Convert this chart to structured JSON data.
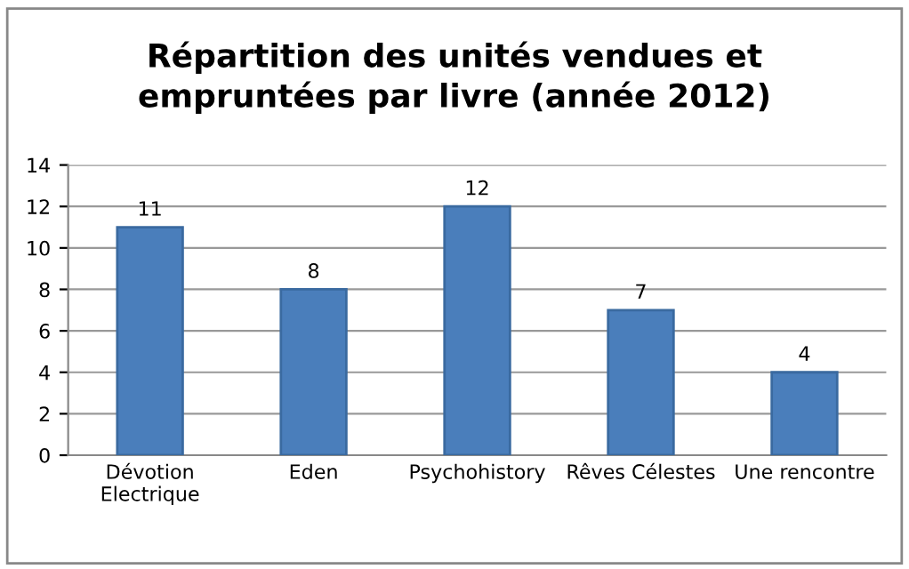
{
  "chart_data": {
    "type": "bar",
    "title": "Répartition des unités vendues et\nempruntées par livre (année 2012)",
    "categories": [
      "Dévotion\nElectrique",
      "Eden",
      "Psychohistory",
      "Rêves Célestes",
      "Une rencontre"
    ],
    "values": [
      11,
      8,
      12,
      7,
      4
    ],
    "color": "#4a7ebb",
    "ylim": [
      0,
      14
    ],
    "yticks": [
      0,
      2,
      4,
      6,
      8,
      10,
      12,
      14
    ],
    "grid": "y",
    "data_labels": true
  }
}
